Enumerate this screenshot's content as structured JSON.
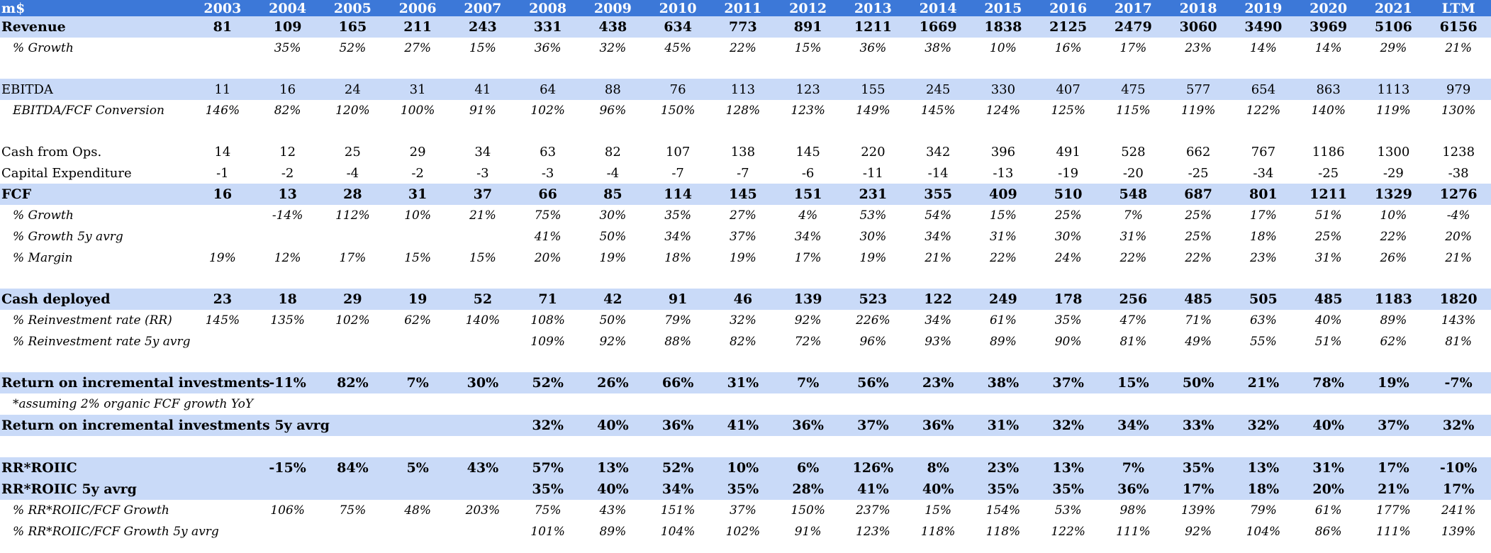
{
  "header": {
    "label": "m$",
    "years": [
      "2003",
      "2004",
      "2005",
      "2006",
      "2007",
      "2008",
      "2009",
      "2010",
      "2011",
      "2012",
      "2013",
      "2014",
      "2015",
      "2016",
      "2017",
      "2018",
      "2019",
      "2020",
      "2021",
      "LTM"
    ]
  },
  "rows": {
    "revenue": {
      "label": "Revenue",
      "values": [
        "81",
        "109",
        "165",
        "211",
        "243",
        "331",
        "438",
        "634",
        "773",
        "891",
        "1211",
        "1669",
        "1838",
        "2125",
        "2479",
        "3060",
        "3490",
        "3969",
        "5106",
        "6156"
      ]
    },
    "revenue_growth": {
      "label": "% Growth",
      "values": [
        "",
        "35%",
        "52%",
        "27%",
        "15%",
        "36%",
        "32%",
        "45%",
        "22%",
        "15%",
        "36%",
        "38%",
        "10%",
        "16%",
        "17%",
        "23%",
        "14%",
        "14%",
        "29%",
        "21%"
      ]
    },
    "ebitda": {
      "label": "EBITDA",
      "values": [
        "11",
        "16",
        "24",
        "31",
        "41",
        "64",
        "88",
        "76",
        "113",
        "123",
        "155",
        "245",
        "330",
        "407",
        "475",
        "577",
        "654",
        "863",
        "1113",
        "979"
      ]
    },
    "ebitda_fcf": {
      "label": "EBITDA/FCF Conversion",
      "values": [
        "146%",
        "82%",
        "120%",
        "100%",
        "91%",
        "102%",
        "96%",
        "150%",
        "128%",
        "123%",
        "149%",
        "145%",
        "124%",
        "125%",
        "115%",
        "119%",
        "122%",
        "140%",
        "119%",
        "130%"
      ]
    },
    "cfo": {
      "label": "Cash from Ops.",
      "values": [
        "14",
        "12",
        "25",
        "29",
        "34",
        "63",
        "82",
        "107",
        "138",
        "145",
        "220",
        "342",
        "396",
        "491",
        "528",
        "662",
        "767",
        "1186",
        "1300",
        "1238"
      ]
    },
    "capex": {
      "label": "Capital Expenditure",
      "values": [
        "-1",
        "-2",
        "-4",
        "-2",
        "-3",
        "-3",
        "-4",
        "-7",
        "-7",
        "-6",
        "-11",
        "-14",
        "-13",
        "-19",
        "-20",
        "-25",
        "-34",
        "-25",
        "-29",
        "-38"
      ]
    },
    "fcf": {
      "label": "FCF",
      "values": [
        "16",
        "13",
        "28",
        "31",
        "37",
        "66",
        "85",
        "114",
        "145",
        "151",
        "231",
        "355",
        "409",
        "510",
        "548",
        "687",
        "801",
        "1211",
        "1329",
        "1276"
      ]
    },
    "fcf_growth": {
      "label": "% Growth",
      "values": [
        "",
        "-14%",
        "112%",
        "10%",
        "21%",
        "75%",
        "30%",
        "35%",
        "27%",
        "4%",
        "53%",
        "54%",
        "15%",
        "25%",
        "7%",
        "25%",
        "17%",
        "51%",
        "10%",
        "-4%"
      ]
    },
    "fcf_growth_5y": {
      "label": "% Growth 5y avrg",
      "values": [
        "",
        "",
        "",
        "",
        "",
        "41%",
        "50%",
        "34%",
        "37%",
        "34%",
        "30%",
        "34%",
        "31%",
        "30%",
        "31%",
        "25%",
        "18%",
        "25%",
        "22%",
        "20%"
      ]
    },
    "fcf_margin": {
      "label": "% Margin",
      "values": [
        "19%",
        "12%",
        "17%",
        "15%",
        "15%",
        "20%",
        "19%",
        "18%",
        "19%",
        "17%",
        "19%",
        "21%",
        "22%",
        "24%",
        "22%",
        "22%",
        "23%",
        "31%",
        "26%",
        "21%"
      ]
    },
    "cash_deployed": {
      "label": "Cash deployed",
      "values": [
        "23",
        "18",
        "29",
        "19",
        "52",
        "71",
        "42",
        "91",
        "46",
        "139",
        "523",
        "122",
        "249",
        "178",
        "256",
        "485",
        "505",
        "485",
        "1183",
        "1820"
      ]
    },
    "rr": {
      "label": "% Reinvestment rate (RR)",
      "values": [
        "145%",
        "135%",
        "102%",
        "62%",
        "140%",
        "108%",
        "50%",
        "79%",
        "32%",
        "92%",
        "226%",
        "34%",
        "61%",
        "35%",
        "47%",
        "71%",
        "63%",
        "40%",
        "89%",
        "143%"
      ]
    },
    "rr_5y": {
      "label": "% Reinvestment rate 5y avrg",
      "values": [
        "",
        "",
        "",
        "",
        "",
        "109%",
        "92%",
        "88%",
        "82%",
        "72%",
        "96%",
        "93%",
        "89%",
        "90%",
        "81%",
        "49%",
        "55%",
        "51%",
        "62%",
        "81%"
      ]
    },
    "roiic": {
      "label": "Return on incremental investments",
      "values": [
        "",
        "-11%",
        "82%",
        "7%",
        "30%",
        "52%",
        "26%",
        "66%",
        "31%",
        "7%",
        "56%",
        "23%",
        "38%",
        "37%",
        "15%",
        "50%",
        "21%",
        "78%",
        "19%",
        "-7%"
      ]
    },
    "roiic_note": {
      "label": "*assuming 2% organic FCF growth YoY"
    },
    "roiic_5y": {
      "label": "Return on incremental investments 5y avrg",
      "values": [
        "",
        "",
        "",
        "",
        "",
        "32%",
        "40%",
        "36%",
        "41%",
        "36%",
        "37%",
        "36%",
        "31%",
        "32%",
        "34%",
        "33%",
        "32%",
        "40%",
        "37%",
        "32%"
      ]
    },
    "rr_roiic": {
      "label": "RR*ROIIC",
      "values": [
        "",
        "-15%",
        "84%",
        "5%",
        "43%",
        "57%",
        "13%",
        "52%",
        "10%",
        "6%",
        "126%",
        "8%",
        "23%",
        "13%",
        "7%",
        "35%",
        "13%",
        "31%",
        "17%",
        "-10%"
      ]
    },
    "rr_roiic_5y": {
      "label": "RR*ROIIC 5y avrg",
      "values": [
        "",
        "",
        "",
        "",
        "",
        "35%",
        "40%",
        "34%",
        "35%",
        "28%",
        "41%",
        "40%",
        "35%",
        "35%",
        "36%",
        "17%",
        "18%",
        "20%",
        "21%",
        "17%"
      ]
    },
    "rr_roiic_fcf": {
      "label": "% RR*ROIIC/FCF Growth",
      "values": [
        "",
        "106%",
        "75%",
        "48%",
        "203%",
        "75%",
        "43%",
        "151%",
        "37%",
        "150%",
        "237%",
        "15%",
        "154%",
        "53%",
        "98%",
        "139%",
        "79%",
        "61%",
        "177%",
        "241%"
      ]
    },
    "rr_roiic_fcf_5y": {
      "label": "% RR*ROIIC/FCF Growth  5y avrg",
      "values": [
        "",
        "",
        "",
        "",
        "",
        "101%",
        "89%",
        "104%",
        "102%",
        "91%",
        "123%",
        "118%",
        "118%",
        "122%",
        "111%",
        "92%",
        "104%",
        "86%",
        "111%",
        "139%"
      ]
    }
  },
  "colors": {
    "header_bg": "#3c78d8",
    "band_bg": "#c9daf8"
  }
}
